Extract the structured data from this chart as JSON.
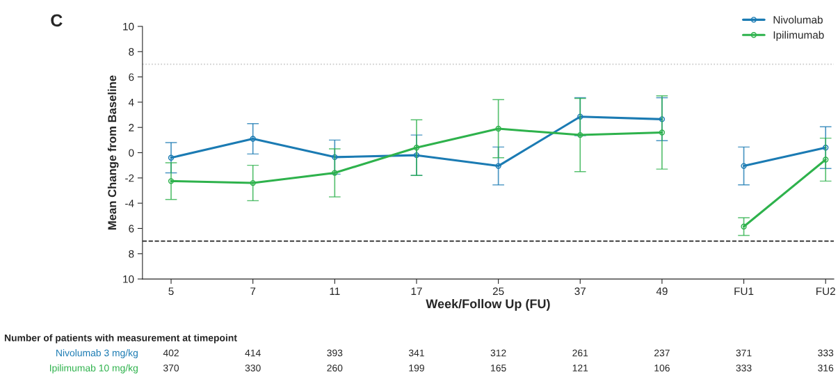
{
  "chart_data": {
    "type": "line",
    "xlabel": "Week/Follow Up (FU)",
    "ylabel": "Mean Change from Baseline",
    "categories": [
      "5",
      "7",
      "11",
      "17",
      "25",
      "37",
      "49",
      "FU1",
      "FU2"
    ],
    "series": [
      {
        "name": "Nivolumab",
        "color": "#1b7bb3",
        "values": [
          -0.4,
          1.1,
          -0.35,
          -0.2,
          -1.05,
          2.85,
          2.65,
          null,
          null
        ],
        "errors": [
          1.2,
          1.2,
          1.35,
          1.6,
          1.5,
          1.5,
          1.7,
          null,
          null
        ]
      },
      {
        "name": "Ipilimumab",
        "color": "#2eb24c",
        "values": [
          -2.25,
          -2.4,
          -1.6,
          0.4,
          1.9,
          1.4,
          1.6,
          null,
          null
        ],
        "errors": [
          1.45,
          1.4,
          1.9,
          2.2,
          2.3,
          2.9,
          2.9,
          null,
          null
        ]
      },
      {
        "color": "#1b7bb3",
        "values": [
          null,
          null,
          null,
          null,
          null,
          null,
          null,
          -1.05,
          0.4
        ],
        "errors": [
          null,
          null,
          null,
          null,
          null,
          null,
          null,
          1.5,
          1.65
        ]
      },
      {
        "color": "#2eb24c",
        "values": [
          null,
          null,
          null,
          null,
          null,
          null,
          null,
          -5.85,
          -0.55
        ],
        "errors": [
          null,
          null,
          null,
          null,
          null,
          null,
          null,
          0.7,
          1.7
        ]
      }
    ],
    "ylim": [
      -10,
      10
    ],
    "yticks": [
      10,
      8,
      6,
      4,
      2,
      0,
      -2,
      -4,
      {
        "value": -6,
        "label": "6"
      },
      {
        "value": -8,
        "label": "8"
      },
      {
        "value": -10,
        "label": "10"
      }
    ],
    "ref_lines": [
      {
        "axis": "y",
        "value": 7,
        "color": "#c8c8c8",
        "line_style": "dotted"
      },
      {
        "axis": "y",
        "value": -7,
        "color": "#222222",
        "line_style": "dashed"
      }
    ],
    "marker": "circle",
    "line_style": "solid",
    "grid": false,
    "legend": "top right",
    "annotations": [
      "C",
      "Number of patients with measurement at timepoint",
      "Nivolumab 3 mg/kg",
      "402",
      "414",
      "393",
      "341",
      "312",
      "261",
      "237",
      "371",
      "333",
      "Ipilimumab 10 mg/kg",
      "370",
      "330",
      "260",
      "199",
      "165",
      "121",
      "106",
      "333",
      "316"
    ]
  }
}
